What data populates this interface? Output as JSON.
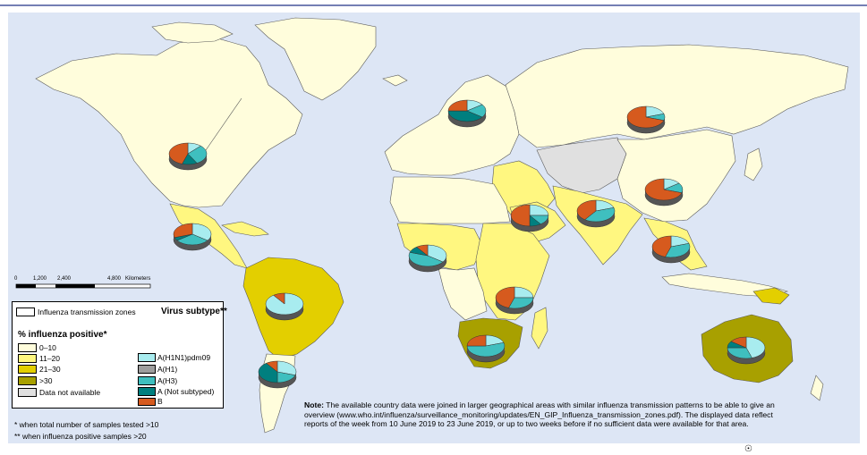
{
  "colors": {
    "ocean": "#dde6f5",
    "zone_0_10": "#fffddc",
    "zone_11_20": "#fff780",
    "zone_21_30": "#e3cf00",
    "zone_gt30": "#a8a000",
    "not_available": "#e0e0e0",
    "h1n1": "#a8ecef",
    "h1": "#9e9e9e",
    "h3": "#3fbfbf",
    "not_subtyped": "#007f7f",
    "b": "#d65a1e",
    "border": "#5a5a5a"
  },
  "legend": {
    "zones_label": "Influenza transmission zones",
    "positive_title": "% influenza positive*",
    "ranges": [
      {
        "label": "0–10",
        "color": "#fffddc"
      },
      {
        "label": "11–20",
        "color": "#fff780"
      },
      {
        "label": "21–30",
        "color": "#e3cf00"
      },
      {
        "label": ">30",
        "color": "#a8a000"
      },
      {
        "label": "Data not available",
        "color": "#e0e0e0"
      }
    ],
    "subtype_title": "Virus subtype**",
    "subtypes": [
      {
        "label": "A(H1N1)pdm09",
        "color": "#a8ecef"
      },
      {
        "label": "A(H1)",
        "color": "#9e9e9e"
      },
      {
        "label": "A(H3)",
        "color": "#3fbfbf"
      },
      {
        "label": "A (Not subtyped)",
        "color": "#007f7f"
      },
      {
        "label": "B",
        "color": "#d65a1e"
      }
    ]
  },
  "scale": {
    "ticks": [
      "0",
      "1,200",
      "2,400",
      "4,800"
    ],
    "unit": "Kilometers"
  },
  "footnotes": {
    "f1": "*   when total number of samples tested >10",
    "f2": "** when influenza positive samples >20"
  },
  "note": {
    "label": "Note:",
    "text": " The available country data were joined in larger geographical areas with similar influenza transmission patterns to be able to give an overview (www.who.int/influenza/surveillance_monitoring/updates/EN_GIP_Influenza_transmission_zones.pdf). The displayed data reflect reports of the week from 10 June 2019 to 23 June 2019, or up to two weeks before if no sufficient data were available for that area."
  },
  "pies": [
    {
      "region": "North America",
      "shares": {
        "h1n1": 0.12,
        "h1": 0.0,
        "h3": 0.3,
        "not_subtyped": 0.13,
        "b": 0.45
      }
    },
    {
      "region": "Central America",
      "shares": {
        "h1n1": 0.35,
        "h1": 0.0,
        "h3": 0.3,
        "not_subtyped": 0.05,
        "b": 0.3
      }
    },
    {
      "region": "Tropical South America",
      "shares": {
        "h1n1": 0.9,
        "h1": 0.0,
        "h3": 0.0,
        "not_subtyped": 0.0,
        "b": 0.1
      }
    },
    {
      "region": "Temperate South America",
      "shares": {
        "h1n1": 0.3,
        "h1": 0.0,
        "h3": 0.2,
        "not_subtyped": 0.4,
        "b": 0.1
      }
    },
    {
      "region": "Northern Europe",
      "shares": {
        "h1n1": 0.15,
        "h1": 0.0,
        "h3": 0.2,
        "not_subtyped": 0.4,
        "b": 0.25
      }
    },
    {
      "region": "Eastern Europe",
      "shares": {
        "h1n1": 0.2,
        "h1": 0.0,
        "h3": 0.1,
        "not_subtyped": 0.0,
        "b": 0.7
      }
    },
    {
      "region": "Western Asia",
      "shares": {
        "h1n1": 0.25,
        "h1": 0.0,
        "h3": 0.15,
        "not_subtyped": 0.1,
        "b": 0.5
      }
    },
    {
      "region": "Southern Asia",
      "shares": {
        "h1n1": 0.2,
        "h1": 0.0,
        "h3": 0.4,
        "not_subtyped": 0.0,
        "b": 0.4
      }
    },
    {
      "region": "Eastern Asia",
      "shares": {
        "h1n1": 0.15,
        "h1": 0.0,
        "h3": 0.15,
        "not_subtyped": 0.0,
        "b": 0.7
      }
    },
    {
      "region": "South-East Asia",
      "shares": {
        "h1n1": 0.2,
        "h1": 0.0,
        "h3": 0.35,
        "not_subtyped": 0.0,
        "b": 0.45
      }
    },
    {
      "region": "Western Africa",
      "shares": {
        "h1n1": 0.35,
        "h1": 0.0,
        "h3": 0.45,
        "not_subtyped": 0.1,
        "b": 0.1
      }
    },
    {
      "region": "Eastern Africa",
      "shares": {
        "h1n1": 0.25,
        "h1": 0.0,
        "h3": 0.3,
        "not_subtyped": 0.0,
        "b": 0.45
      }
    },
    {
      "region": "Southern Africa",
      "shares": {
        "h1n1": 0.2,
        "h1": 0.0,
        "h3": 0.55,
        "not_subtyped": 0.0,
        "b": 0.25
      }
    },
    {
      "region": "Oceania",
      "shares": {
        "h1n1": 0.45,
        "h1": 0.0,
        "h3": 0.3,
        "not_subtyped": 0.1,
        "b": 0.15
      }
    }
  ]
}
